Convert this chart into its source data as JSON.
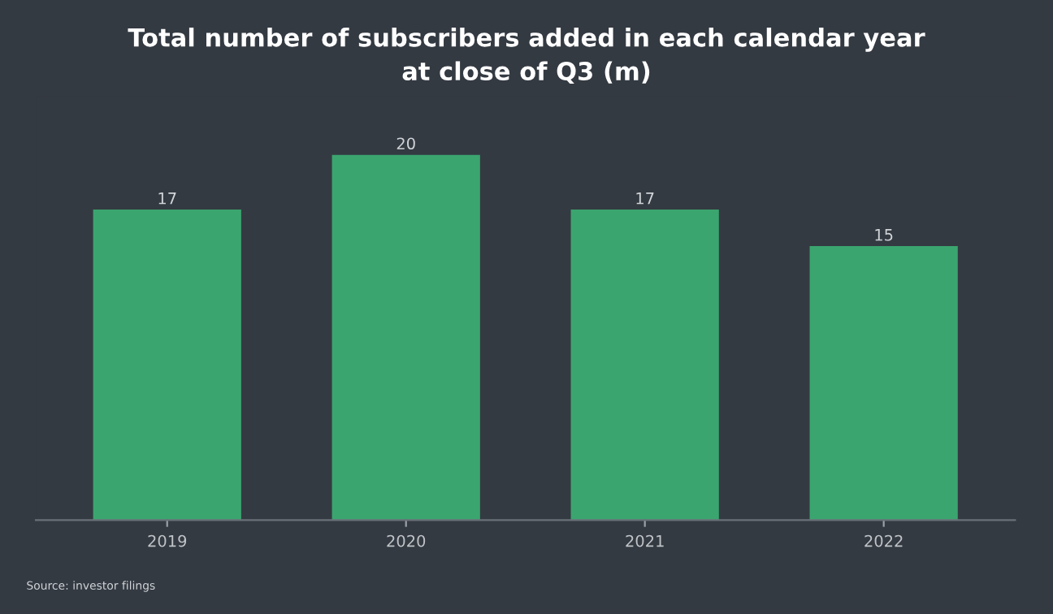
{
  "chart_data": {
    "type": "bar",
    "title": "Total number of subscribers added in each calendar year\nat close of Q3 (m)",
    "categories": [
      "2019",
      "2020",
      "2021",
      "2022"
    ],
    "values": [
      17,
      20,
      17,
      15
    ],
    "color": "#3ba56f",
    "data_labels": true,
    "grid": false,
    "legend": false,
    "tick_labels": "x",
    "annotations": [
      "Source: investor filings"
    ]
  }
}
